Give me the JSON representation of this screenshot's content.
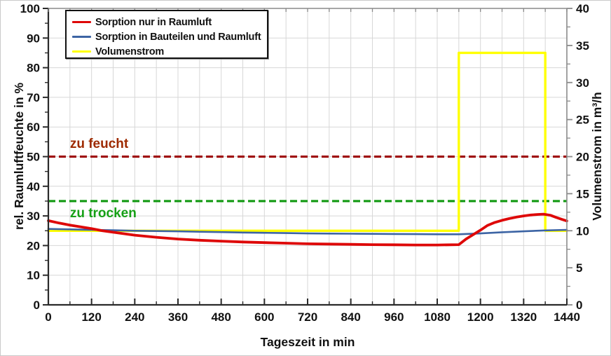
{
  "chart_data": {
    "type": "line",
    "title": "",
    "xlabel": "Tageszeit in min",
    "ylabel_left": "rel. Raumluftfeuchte in %",
    "ylabel_right": "Volumenstrom in m³/h",
    "x_range": [
      0,
      1440
    ],
    "y_left_range": [
      0,
      100
    ],
    "y_right_range": [
      0,
      40
    ],
    "x_major_step": 120,
    "x_minor_step": 60,
    "y_left_major_step": 10,
    "y_left_minor_step": 5,
    "y_right_major_step": 5,
    "y_right_minor_step": 2.5,
    "x_ticks": [
      0,
      120,
      240,
      360,
      480,
      600,
      720,
      840,
      960,
      1080,
      1200,
      1320,
      1440
    ],
    "y_left_ticks": [
      0,
      10,
      20,
      30,
      40,
      50,
      60,
      70,
      80,
      90,
      100
    ],
    "y_right_ticks": [
      0,
      5,
      10,
      15,
      20,
      25,
      30,
      35,
      40
    ],
    "grid": {
      "on": true,
      "color": "#d7d7d7",
      "v_step_min": 60,
      "h_step_left_units": 10
    },
    "legend_position": "top-left-inside",
    "series": [
      {
        "name": "Volumenstrom",
        "axis": "right",
        "color": "#ffff00",
        "width": 3.4,
        "points": [
          [
            0,
            10
          ],
          [
            1140,
            10
          ],
          [
            1140,
            34
          ],
          [
            1380,
            34
          ],
          [
            1380,
            10
          ],
          [
            1440,
            10
          ]
        ]
      },
      {
        "name": "Sorption in Bauteilen und Raumluft",
        "axis": "left",
        "color": "#3c64a4",
        "width": 2.6,
        "points": [
          [
            0,
            25.6
          ],
          [
            60,
            25.45
          ],
          [
            120,
            25.3
          ],
          [
            180,
            25.15
          ],
          [
            240,
            25.0
          ],
          [
            300,
            24.9
          ],
          [
            360,
            24.8
          ],
          [
            420,
            24.65
          ],
          [
            480,
            24.55
          ],
          [
            540,
            24.4
          ],
          [
            600,
            24.3
          ],
          [
            660,
            24.2
          ],
          [
            720,
            24.1
          ],
          [
            780,
            24.05
          ],
          [
            840,
            24.0
          ],
          [
            900,
            23.95
          ],
          [
            960,
            23.9
          ],
          [
            1020,
            23.85
          ],
          [
            1080,
            23.8
          ],
          [
            1140,
            23.8
          ],
          [
            1200,
            24.1
          ],
          [
            1260,
            24.5
          ],
          [
            1320,
            24.8
          ],
          [
            1380,
            25.1
          ],
          [
            1440,
            25.3
          ]
        ]
      },
      {
        "name": "Sorption nur in Raumluft",
        "axis": "left",
        "color": "#de0808",
        "width": 3.8,
        "points": [
          [
            0,
            28.4
          ],
          [
            30,
            27.6
          ],
          [
            60,
            26.9
          ],
          [
            90,
            26.3
          ],
          [
            120,
            25.7
          ],
          [
            150,
            25.0
          ],
          [
            180,
            24.5
          ],
          [
            210,
            24.0
          ],
          [
            240,
            23.5
          ],
          [
            300,
            22.8
          ],
          [
            360,
            22.2
          ],
          [
            420,
            21.8
          ],
          [
            480,
            21.5
          ],
          [
            540,
            21.2
          ],
          [
            600,
            21.0
          ],
          [
            660,
            20.8
          ],
          [
            720,
            20.6
          ],
          [
            780,
            20.5
          ],
          [
            840,
            20.4
          ],
          [
            900,
            20.3
          ],
          [
            960,
            20.25
          ],
          [
            1020,
            20.2
          ],
          [
            1080,
            20.2
          ],
          [
            1140,
            20.3
          ],
          [
            1160,
            22.2
          ],
          [
            1180,
            23.7
          ],
          [
            1200,
            25.2
          ],
          [
            1220,
            26.8
          ],
          [
            1240,
            27.8
          ],
          [
            1260,
            28.5
          ],
          [
            1280,
            29.1
          ],
          [
            1300,
            29.6
          ],
          [
            1320,
            30.0
          ],
          [
            1340,
            30.3
          ],
          [
            1360,
            30.5
          ],
          [
            1375,
            30.6
          ],
          [
            1395,
            30.2
          ],
          [
            1410,
            29.5
          ],
          [
            1425,
            28.9
          ],
          [
            1440,
            28.3
          ]
        ]
      }
    ],
    "thresholds": [
      {
        "label": "zu feucht",
        "value_left": 50,
        "line_color": "#a01414",
        "text_color": "#9e2a00",
        "style": "dashed",
        "label_side": "above"
      },
      {
        "label": "zu trocken",
        "value_left": 35,
        "line_color": "#119911",
        "text_color": "#16a016",
        "style": "dashed",
        "label_side": "below"
      }
    ],
    "legend_order": [
      "Sorption nur in Raumluft",
      "Sorption in Bauteilen und Raumluft",
      "Volumenstrom"
    ]
  },
  "colors": {
    "grid": "#d7d7d7",
    "axis_left_bottom": "#2a2a2a",
    "axis_top_right": "#8a8a8a",
    "tick_label": "#111111",
    "background": "#ffffff"
  }
}
